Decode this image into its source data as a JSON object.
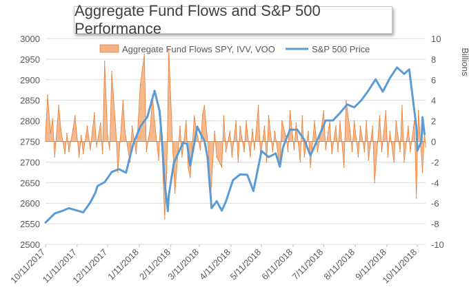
{
  "chart_data": {
    "type": "line",
    "title": "Aggregate Fund Flows and S&P 500 Performance",
    "xlabel": "",
    "ylabel": "",
    "y2label": "Billions",
    "ylim": [
      2500,
      3000
    ],
    "y2lim": [
      -10,
      10
    ],
    "yticks": [
      "2500",
      "2550",
      "2600",
      "2650",
      "2700",
      "2750",
      "2800",
      "2850",
      "2900",
      "2950",
      "3000"
    ],
    "y2ticks": [
      "-10",
      "-8",
      "-6",
      "-4",
      "-2",
      "0",
      "2",
      "4",
      "6",
      "8",
      "10"
    ],
    "xtick_labels": [
      "10/11/2017",
      "11/11/2017",
      "12/11/2017",
      "1/11/2018",
      "2/11/2018",
      "3/11/2018",
      "4/11/2018",
      "5/11/2018",
      "6/11/2018",
      "7/11/2018",
      "8/11/2018",
      "9/11/2018",
      "10/11/2018"
    ],
    "x_start": "10/11/2017",
    "x_end": "10/19/2018",
    "grid": true,
    "legend_position": "top",
    "series": [
      {
        "name": "Aggregate Fund Flows SPY, IVV, VOO",
        "kind": "area",
        "axis": "right",
        "color": "#f4b183",
        "stroke": "#ed7d31",
        "points": [
          [
            "10/11/2017",
            0.5
          ],
          [
            "10/13/2017",
            4.5
          ],
          [
            "10/16/2017",
            0.8
          ],
          [
            "10/18/2017",
            2.2
          ],
          [
            "10/20/2017",
            -1.5
          ],
          [
            "10/24/2017",
            3.5
          ],
          [
            "10/26/2017",
            1.2
          ],
          [
            "10/30/2017",
            -1.2
          ],
          [
            "11/1/2017",
            0.8
          ],
          [
            "11/3/2017",
            -1.0
          ],
          [
            "11/7/2017",
            1.2
          ],
          [
            "11/9/2017",
            2.5
          ],
          [
            "11/13/2017",
            -1.5
          ],
          [
            "11/15/2017",
            0.6
          ],
          [
            "11/17/2017",
            -1.2
          ],
          [
            "11/21/2017",
            1.5
          ],
          [
            "11/24/2017",
            -0.8
          ],
          [
            "11/28/2017",
            2.8
          ],
          [
            "11/30/2017",
            -0.5
          ],
          [
            "12/4/2017",
            1.8
          ],
          [
            "12/6/2017",
            -1.2
          ],
          [
            "12/8/2017",
            7.8
          ],
          [
            "12/11/2017",
            0.5
          ],
          [
            "12/13/2017",
            -0.8
          ],
          [
            "12/15/2017",
            6.8
          ],
          [
            "12/19/2017",
            1.2
          ],
          [
            "12/21/2017",
            -3.0
          ],
          [
            "12/26/2017",
            4.0
          ],
          [
            "12/28/2017",
            1.0
          ],
          [
            "1/2/2018",
            -2.0
          ],
          [
            "1/4/2018",
            1.5
          ],
          [
            "1/8/2018",
            -1.2
          ],
          [
            "1/10/2018",
            2.0
          ],
          [
            "1/12/2018",
            5.5
          ],
          [
            "1/16/2018",
            8.5
          ],
          [
            "1/18/2018",
            -1.0
          ],
          [
            "1/22/2018",
            1.5
          ],
          [
            "1/24/2018",
            4.5
          ],
          [
            "1/26/2018",
            2.0
          ],
          [
            "1/30/2018",
            -1.8
          ],
          [
            "2/1/2018",
            2.5
          ],
          [
            "2/5/2018",
            -7.5
          ],
          [
            "2/7/2018",
            -3.0
          ],
          [
            "2/9/2018",
            9.0
          ],
          [
            "2/13/2018",
            -1.0
          ],
          [
            "2/15/2018",
            -5.0
          ],
          [
            "2/20/2018",
            1.5
          ],
          [
            "2/22/2018",
            -1.5
          ],
          [
            "2/26/2018",
            2.0
          ],
          [
            "2/28/2018",
            -2.5
          ],
          [
            "3/2/2018",
            -3.5
          ],
          [
            "3/6/2018",
            2.5
          ],
          [
            "3/8/2018",
            1.2
          ],
          [
            "3/12/2018",
            -0.8
          ],
          [
            "3/14/2018",
            2.5
          ],
          [
            "3/16/2018",
            3.5
          ],
          [
            "3/20/2018",
            -1.0
          ],
          [
            "3/22/2018",
            -5.5
          ],
          [
            "3/26/2018",
            1.0
          ],
          [
            "3/28/2018",
            -1.5
          ],
          [
            "4/2/2018",
            -2.5
          ],
          [
            "4/4/2018",
            2.5
          ],
          [
            "4/6/2018",
            -1.0
          ],
          [
            "4/10/2018",
            1.0
          ],
          [
            "4/12/2018",
            -1.5
          ],
          [
            "4/16/2018",
            2.0
          ],
          [
            "4/18/2018",
            -2.0
          ],
          [
            "4/20/2018",
            1.5
          ],
          [
            "4/24/2018",
            -1.0
          ],
          [
            "4/26/2018",
            2.0
          ],
          [
            "4/30/2018",
            -1.5
          ],
          [
            "5/2/2018",
            1.2
          ],
          [
            "5/4/2018",
            -0.8
          ],
          [
            "5/8/2018",
            3.5
          ],
          [
            "5/10/2018",
            -1.5
          ],
          [
            "5/14/2018",
            1.5
          ],
          [
            "5/16/2018",
            -2.0
          ],
          [
            "5/18/2018",
            2.5
          ],
          [
            "5/22/2018",
            -1.0
          ],
          [
            "5/24/2018",
            1.0
          ],
          [
            "5/29/2018",
            -2.5
          ],
          [
            "5/31/2018",
            2.0
          ],
          [
            "6/4/2018",
            0.5
          ],
          [
            "6/6/2018",
            -1.0
          ],
          [
            "6/8/2018",
            3.0
          ],
          [
            "6/12/2018",
            -0.8
          ],
          [
            "6/14/2018",
            1.8
          ],
          [
            "6/18/2018",
            -2.0
          ],
          [
            "6/20/2018",
            2.5
          ],
          [
            "6/22/2018",
            -1.5
          ],
          [
            "6/26/2018",
            1.0
          ],
          [
            "6/28/2018",
            -2.5
          ],
          [
            "7/2/2018",
            2.0
          ],
          [
            "7/5/2018",
            -1.0
          ],
          [
            "7/9/2018",
            1.5
          ],
          [
            "7/11/2018",
            3.0
          ],
          [
            "7/13/2018",
            -0.8
          ],
          [
            "7/17/2018",
            2.0
          ],
          [
            "7/19/2018",
            -1.2
          ],
          [
            "7/23/2018",
            1.5
          ],
          [
            "7/25/2018",
            -1.0
          ],
          [
            "7/27/2018",
            2.0
          ],
          [
            "7/31/2018",
            -2.5
          ],
          [
            "8/2/2018",
            4.0
          ],
          [
            "8/6/2018",
            1.0
          ],
          [
            "8/8/2018",
            -1.0
          ],
          [
            "8/10/2018",
            2.0
          ],
          [
            "8/14/2018",
            -1.5
          ],
          [
            "8/16/2018",
            1.5
          ],
          [
            "8/20/2018",
            -1.0
          ],
          [
            "8/22/2018",
            2.0
          ],
          [
            "8/24/2018",
            -1.8
          ],
          [
            "8/28/2018",
            1.5
          ],
          [
            "8/30/2018",
            -4.0
          ],
          [
            "9/4/2018",
            2.5
          ],
          [
            "9/6/2018",
            -1.0
          ],
          [
            "9/10/2018",
            3.0
          ],
          [
            "9/12/2018",
            -1.5
          ],
          [
            "9/14/2018",
            1.0
          ],
          [
            "9/18/2018",
            -2.0
          ],
          [
            "9/20/2018",
            2.0
          ],
          [
            "9/24/2018",
            -1.0
          ],
          [
            "9/26/2018",
            3.5
          ],
          [
            "9/28/2018",
            -2.0
          ],
          [
            "10/2/2018",
            1.5
          ],
          [
            "10/4/2018",
            -1.0
          ],
          [
            "10/8/2018",
            2.0
          ],
          [
            "10/10/2018",
            -5.5
          ],
          [
            "10/11/2018",
            -1.0
          ],
          [
            "10/12/2018",
            3.0
          ],
          [
            "10/16/2018",
            -3.0
          ],
          [
            "10/17/2018",
            -1.0
          ],
          [
            "10/18/2018",
            1.0
          ],
          [
            "10/19/2018",
            -0.5
          ]
        ]
      },
      {
        "name": "S&P 500 Price",
        "kind": "line",
        "axis": "left",
        "color": "#5b9bd5",
        "points": [
          [
            "10/11/2017",
            2553
          ],
          [
            "10/20/2017",
            2575
          ],
          [
            "10/27/2017",
            2581
          ],
          [
            "11/3/2017",
            2588
          ],
          [
            "11/10/2017",
            2583
          ],
          [
            "11/17/2017",
            2578
          ],
          [
            "11/24/2017",
            2602
          ],
          [
            "11/29/2017",
            2626
          ],
          [
            "12/1/2017",
            2642
          ],
          [
            "12/8/2017",
            2651
          ],
          [
            "12/15/2017",
            2676
          ],
          [
            "12/22/2017",
            2683
          ],
          [
            "12/29/2017",
            2674
          ],
          [
            "1/5/2018",
            2743
          ],
          [
            "1/12/2018",
            2786
          ],
          [
            "1/19/2018",
            2810
          ],
          [
            "1/26/2018",
            2873
          ],
          [
            "1/31/2018",
            2824
          ],
          [
            "2/2/2018",
            2762
          ],
          [
            "2/5/2018",
            2649
          ],
          [
            "2/8/2018",
            2581
          ],
          [
            "2/9/2018",
            2619
          ],
          [
            "2/14/2018",
            2698
          ],
          [
            "2/23/2018",
            2747
          ],
          [
            "2/27/2018",
            2744
          ],
          [
            "3/2/2018",
            2691
          ],
          [
            "3/9/2018",
            2786
          ],
          [
            "3/13/2018",
            2765
          ],
          [
            "3/16/2018",
            2752
          ],
          [
            "3/19/2018",
            2712
          ],
          [
            "3/23/2018",
            2588
          ],
          [
            "3/28/2018",
            2605
          ],
          [
            "4/2/2018",
            2582
          ],
          [
            "4/6/2018",
            2604
          ],
          [
            "4/13/2018",
            2656
          ],
          [
            "4/20/2018",
            2670
          ],
          [
            "4/27/2018",
            2669
          ],
          [
            "5/3/2018",
            2630
          ],
          [
            "5/11/2018",
            2727
          ],
          [
            "5/18/2018",
            2712
          ],
          [
            "5/25/2018",
            2721
          ],
          [
            "5/29/2018",
            2689
          ],
          [
            "6/1/2018",
            2735
          ],
          [
            "6/8/2018",
            2779
          ],
          [
            "6/15/2018",
            2779
          ],
          [
            "6/22/2018",
            2754
          ],
          [
            "6/28/2018",
            2716
          ],
          [
            "7/6/2018",
            2760
          ],
          [
            "7/13/2018",
            2801
          ],
          [
            "7/20/2018",
            2801
          ],
          [
            "7/27/2018",
            2819
          ],
          [
            "8/3/2018",
            2840
          ],
          [
            "8/10/2018",
            2833
          ],
          [
            "8/17/2018",
            2850
          ],
          [
            "8/24/2018",
            2874
          ],
          [
            "8/31/2018",
            2901
          ],
          [
            "9/7/2018",
            2871
          ],
          [
            "9/14/2018",
            2904
          ],
          [
            "9/21/2018",
            2930
          ],
          [
            "9/28/2018",
            2914
          ],
          [
            "10/3/2018",
            2925
          ],
          [
            "10/5/2018",
            2885
          ],
          [
            "10/10/2018",
            2785
          ],
          [
            "10/11/2018",
            2728
          ],
          [
            "10/15/2018",
            2750
          ],
          [
            "10/16/2018",
            2809
          ],
          [
            "10/18/2018",
            2768
          ]
        ]
      }
    ]
  }
}
